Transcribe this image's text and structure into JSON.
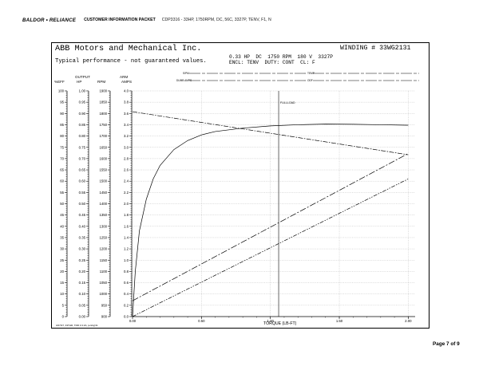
{
  "header": {
    "logo": "BALDOR • RELIANCE",
    "packet_title": "CUSTOMER INFORMATION PACKET",
    "description": "CDP3316 - 33HP, 1750RPM, DC, 56C, 3327P, TENV, F1, N"
  },
  "sheet": {
    "company": "ABB Motors and Mechanical Inc.",
    "subtitle": "Typical performance - not guaranteed values.",
    "winding": "WINDING # 33WG2131",
    "spec_line_1": "0.33 HP  DC  1750 RPM  180 V  3327P",
    "spec_line_2": "ENCL: TENV  DUTY: CONT  CL: F",
    "field_labels": {
      "left_top": "S/PM",
      "left_bottom": "DUMB AMPS",
      "right_top": "TEMP",
      "right_bottom": "ODF"
    },
    "footer_code": "3/27/07, 33THR, TRR 3.3.3A, (entity)31"
  },
  "chart_data": {
    "type": "line",
    "title": "",
    "xlabel": "TORQUE (LB-FT)",
    "x_ticks": [
      "0.00",
      "0.50",
      "1.00",
      "1.50",
      "2.00"
    ],
    "xlim": [
      0,
      2.05
    ],
    "fullload_label": "FULLLOAD",
    "fullload_x": 1.06,
    "axes": [
      {
        "name": "%EFF",
        "label": "%EFF",
        "ticks": [
          "100",
          "95",
          "90",
          "85",
          "80",
          "75",
          "70",
          "65",
          "60",
          "55",
          "50",
          "45",
          "40",
          "35",
          "30",
          "25",
          "20",
          "15",
          "10",
          "5",
          "0"
        ],
        "range": [
          0,
          100
        ]
      },
      {
        "name": "OUTPUT HP",
        "label": "OUTPUT HP",
        "ticks": [
          "1.00",
          "0.95",
          "0.90",
          "0.85",
          "0.80",
          "0.75",
          "0.70",
          "0.65",
          "0.60",
          "0.55",
          "0.50",
          "0.45",
          "0.40",
          "0.35",
          "0.30",
          "0.25",
          "0.20",
          "0.15",
          "0.10",
          "0.05",
          "0.00"
        ],
        "range": [
          0,
          1
        ]
      },
      {
        "name": "RPM",
        "label": "RPM",
        "ticks": [
          "1900",
          "1850",
          "1800",
          "1750",
          "1700",
          "1650",
          "1600",
          "1550",
          "1500",
          "1450",
          "1400",
          "1350",
          "1300",
          "1250",
          "1200",
          "1150",
          "1100",
          "1050",
          "1000",
          "950",
          "900"
        ],
        "range": [
          900,
          1900
        ]
      },
      {
        "name": "ARM AMPS",
        "label": "ARM AMPS",
        "ticks": [
          "4.0",
          "3.8",
          "3.6",
          "3.4",
          "3.2",
          "3.0",
          "2.8",
          "2.6",
          "2.4",
          "2.2",
          "2.0",
          "1.8",
          "1.6",
          "1.4",
          "1.2",
          "1.0",
          "0.8",
          "0.6",
          "0.4",
          "0.2",
          "0.0"
        ],
        "range": [
          0,
          4
        ]
      }
    ],
    "series": [
      {
        "axis": "%EFF",
        "x": [
          0.0,
          0.02,
          0.05,
          0.1,
          0.15,
          0.2,
          0.3,
          0.4,
          0.5,
          0.6,
          0.8,
          1.0,
          1.2,
          1.4,
          1.6,
          1.8,
          2.0
        ],
        "values": [
          0,
          20,
          38,
          52,
          61,
          67,
          74,
          78,
          80.5,
          82,
          83.5,
          84.5,
          85,
          85.3,
          85.2,
          85,
          84.8
        ]
      },
      {
        "axis": "RPM",
        "x": [
          0.0,
          2.0
        ],
        "values": [
          1808,
          1617
        ]
      },
      {
        "axis": "ARM AMPS",
        "x": [
          0.0,
          2.0
        ],
        "values": [
          0.28,
          2.89
        ]
      },
      {
        "axis": "OUTPUT HP",
        "x": [
          0.0,
          2.0
        ],
        "values": [
          0.0,
          0.61
        ]
      }
    ],
    "grid": true
  },
  "page": {
    "label": "Page 7 of 9"
  }
}
